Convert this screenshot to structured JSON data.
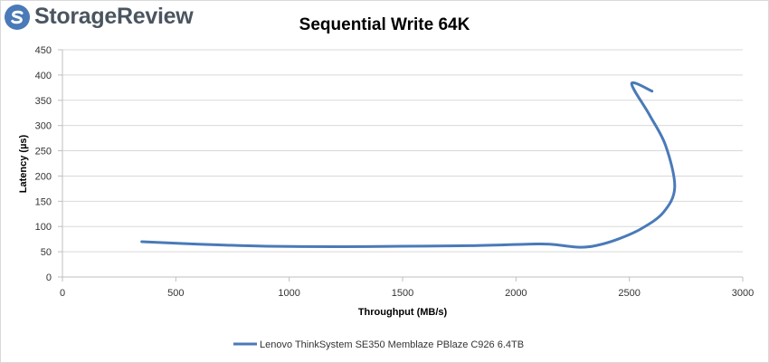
{
  "logo": {
    "text": "StorageReview",
    "icon": "storagereview-s-logo"
  },
  "colors": {
    "series": "#4a7ab8",
    "grid": "#d9d9d9",
    "axis": "#bfbfbf",
    "logo_text": "#4a5560",
    "logo_icon": "#4a7ab8"
  },
  "chart_data": {
    "type": "line",
    "title": "Sequential Write 64K",
    "xlabel": "Throughput (MB/s)",
    "ylabel": "Latency (µs)",
    "xlim": [
      0,
      3000
    ],
    "ylim": [
      0,
      450
    ],
    "xticks": [
      "0",
      "500",
      "1000",
      "1500",
      "2000",
      "2500",
      "3000"
    ],
    "yticks": [
      "0",
      "50",
      "100",
      "150",
      "200",
      "250",
      "300",
      "350",
      "400",
      "450"
    ],
    "grid": "horizontal",
    "legend_position": "bottom",
    "series": [
      {
        "name": "Lenovo ThinkSystem SE350 Memblaze PBlaze C926 6.4TB",
        "points": [
          [
            350,
            70
          ],
          [
            600,
            65
          ],
          [
            900,
            61
          ],
          [
            1200,
            60
          ],
          [
            1500,
            61
          ],
          [
            1800,
            62
          ],
          [
            2050,
            65
          ],
          [
            2150,
            65
          ],
          [
            2280,
            59
          ],
          [
            2360,
            63
          ],
          [
            2450,
            75
          ],
          [
            2550,
            95
          ],
          [
            2650,
            128
          ],
          [
            2700,
            178
          ],
          [
            2660,
            260
          ],
          [
            2590,
            320
          ],
          [
            2510,
            383
          ],
          [
            2600,
            368
          ]
        ]
      }
    ]
  }
}
